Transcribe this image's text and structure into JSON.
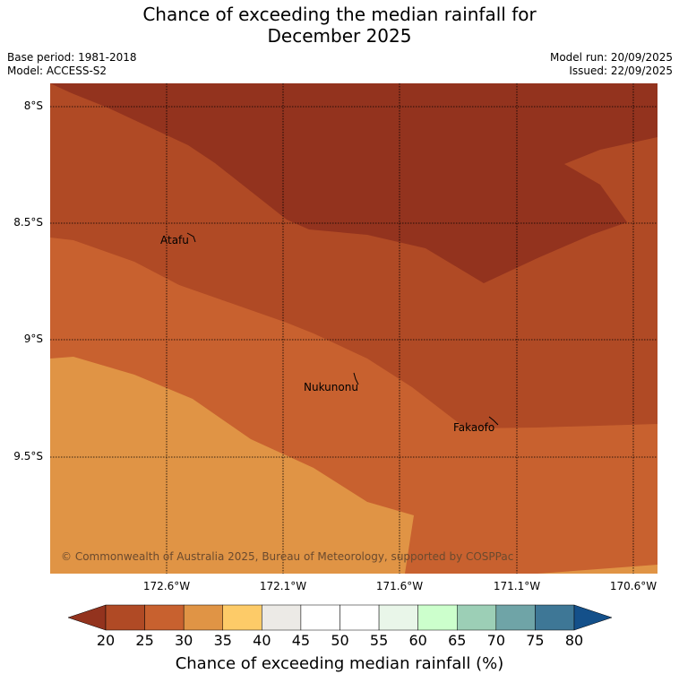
{
  "title_line1": "Chance of exceeding the median rainfall for",
  "title_line2": "December 2025",
  "base_period": "Base period: 1981-2018",
  "model": "Model: ACCESS-S2",
  "model_run": "Model run: 20/09/2025",
  "issued": "Issued: 22/09/2025",
  "copyright": "© Commonwealth of Australia 2025, Bureau of Meteorology, supported by COSPPac",
  "lat_labels": [
    "8°S",
    "8.5°S",
    "9°S",
    "9.5°S"
  ],
  "lon_labels": [
    "172.6°W",
    "172.1°W",
    "171.6°W",
    "171.1°W",
    "170.6°W"
  ],
  "places": [
    "Atafu",
    "Nukunonu",
    "Fakaofo"
  ],
  "colorbar": {
    "title": "Chance of exceeding median rainfall (%)",
    "ticks": [
      "20",
      "25",
      "30",
      "35",
      "40",
      "45",
      "50",
      "55",
      "60",
      "65",
      "70",
      "75",
      "80"
    ],
    "colors": [
      "#b04a25",
      "#c8612f",
      "#e09445",
      "#fdcb68",
      "#eceae6",
      "#ffffff",
      "#ffffff",
      "#e9f6e9",
      "#ccffcc",
      "#9ccfb6",
      "#6fa4a7",
      "#3e7796"
    ],
    "under_color": "#93331e",
    "over_color": "#14508a"
  },
  "map_colors": {
    "lt20": "#93331e",
    "c20_25": "#b04a25",
    "c25_30": "#c8612f",
    "c30_35": "#e09445"
  }
}
